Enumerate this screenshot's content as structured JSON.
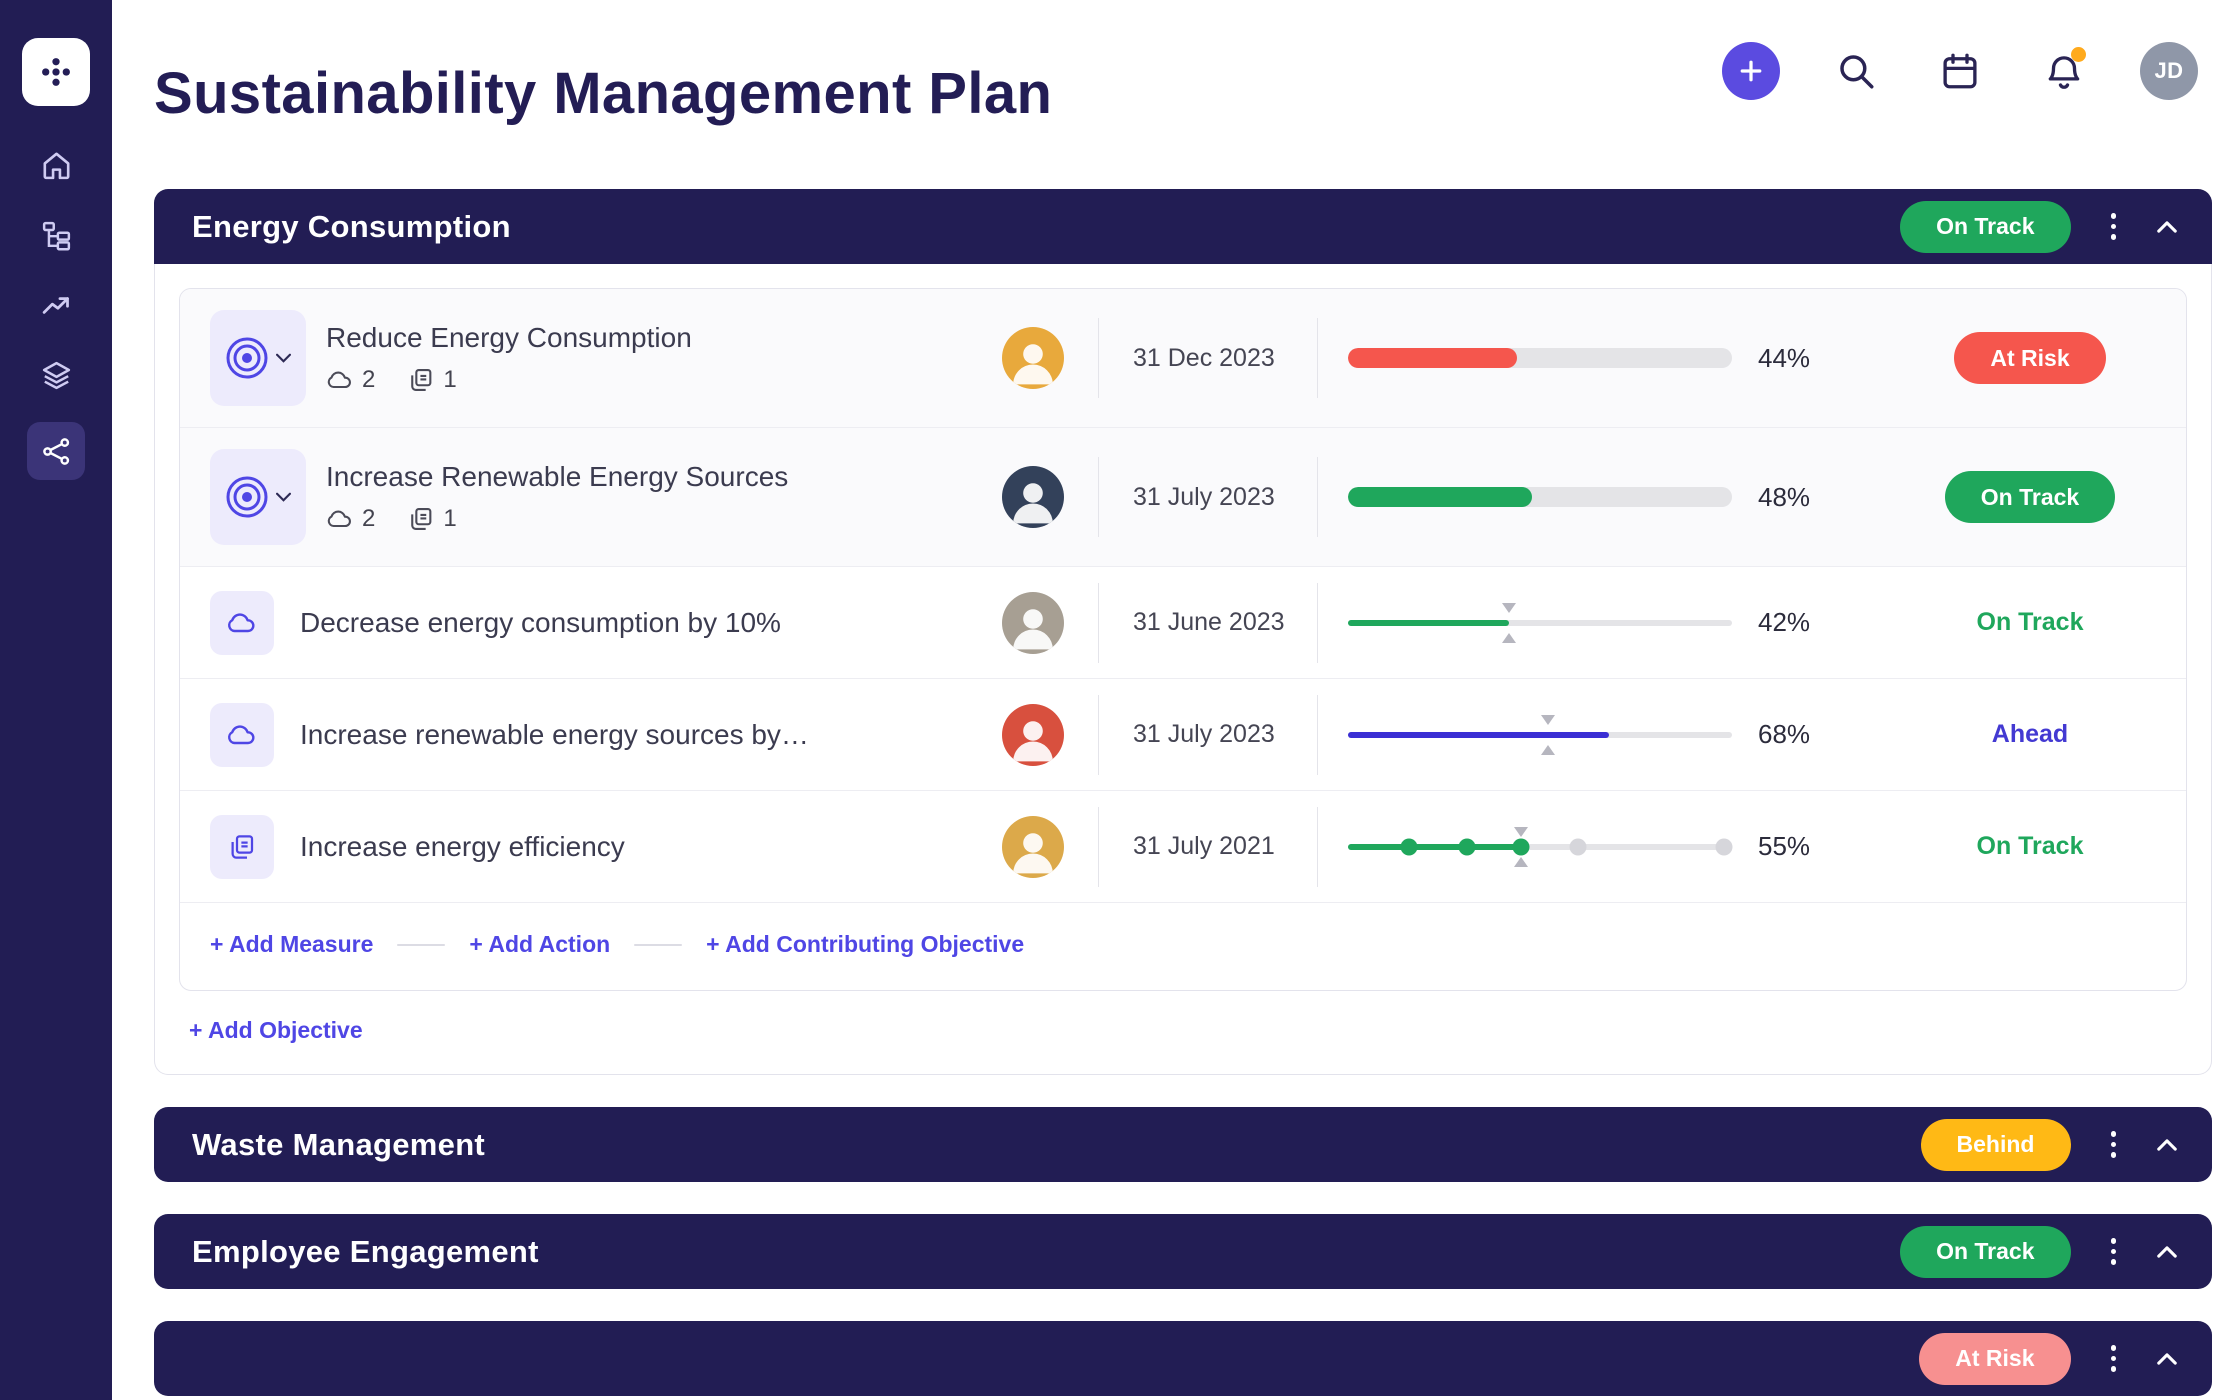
{
  "colors": {
    "navy": "#221d54",
    "accent": "#5b4be0",
    "indigo": "#4f46e5",
    "green": "#1fa75c",
    "red": "#f5564d",
    "amber": "#ffb915",
    "pink": "#f79090",
    "blue": "#3b2fd4",
    "ahead": "#4339d2",
    "badge": "#ffaa1d"
  },
  "page": {
    "title": "Sustainability Management Plan"
  },
  "topbar": {
    "avatar_initials": "JD"
  },
  "sidebar": {
    "items": [
      "home",
      "hierarchy",
      "trending",
      "layers",
      "network"
    ]
  },
  "sections": [
    {
      "title": "Energy Consumption",
      "status": {
        "label": "On Track"
      },
      "rows": [
        {
          "type": "objective",
          "title": "Reduce Energy Consumption",
          "cloud_count": "2",
          "doc_count": "1",
          "date": "31 Dec 2023",
          "percent_label": "44%",
          "status": "At Risk",
          "avatar_bg": "#e8a93c"
        },
        {
          "type": "objective",
          "title": "Increase Renewable Energy Sources",
          "cloud_count": "2",
          "doc_count": "1",
          "date": "31 July 2023",
          "percent_label": "48%",
          "status": "On Track",
          "avatar_bg": "#33415a"
        },
        {
          "type": "measure",
          "title": "Decrease energy consumption by 10%",
          "date": "31 June 2023",
          "percent_label": "42%",
          "status": "On Track",
          "avatar_bg": "#a79f93"
        },
        {
          "type": "measure",
          "title": "Increase renewable energy sources by…",
          "date": "31 July 2023",
          "percent_label": "68%",
          "status": "Ahead",
          "avatar_bg": "#d8503e"
        },
        {
          "type": "action",
          "title": "Increase energy efficiency",
          "date": "31 July 2021",
          "percent_label": "55%",
          "line_percent": "45%",
          "status": "On Track",
          "avatar_bg": "#dca94a",
          "milestones": [
            {
              "pos": 16,
              "done": true
            },
            {
              "pos": 31,
              "done": true
            },
            {
              "pos": 45,
              "done": true
            },
            {
              "pos": 60,
              "done": false
            },
            {
              "pos": 98,
              "done": false
            }
          ]
        }
      ],
      "footer": {
        "add_measure": "+ Add Measure",
        "add_action": "+ Add Action",
        "add_contributing": "+ Add Contributing Objective"
      },
      "add_objective": "+ Add Objective"
    },
    {
      "title": "Waste Management",
      "status": {
        "label": "Behind"
      }
    },
    {
      "title": "Employee Engagement",
      "status": {
        "label": "On Track"
      }
    },
    {
      "title": "",
      "status": {
        "label": "At Risk"
      }
    }
  ]
}
